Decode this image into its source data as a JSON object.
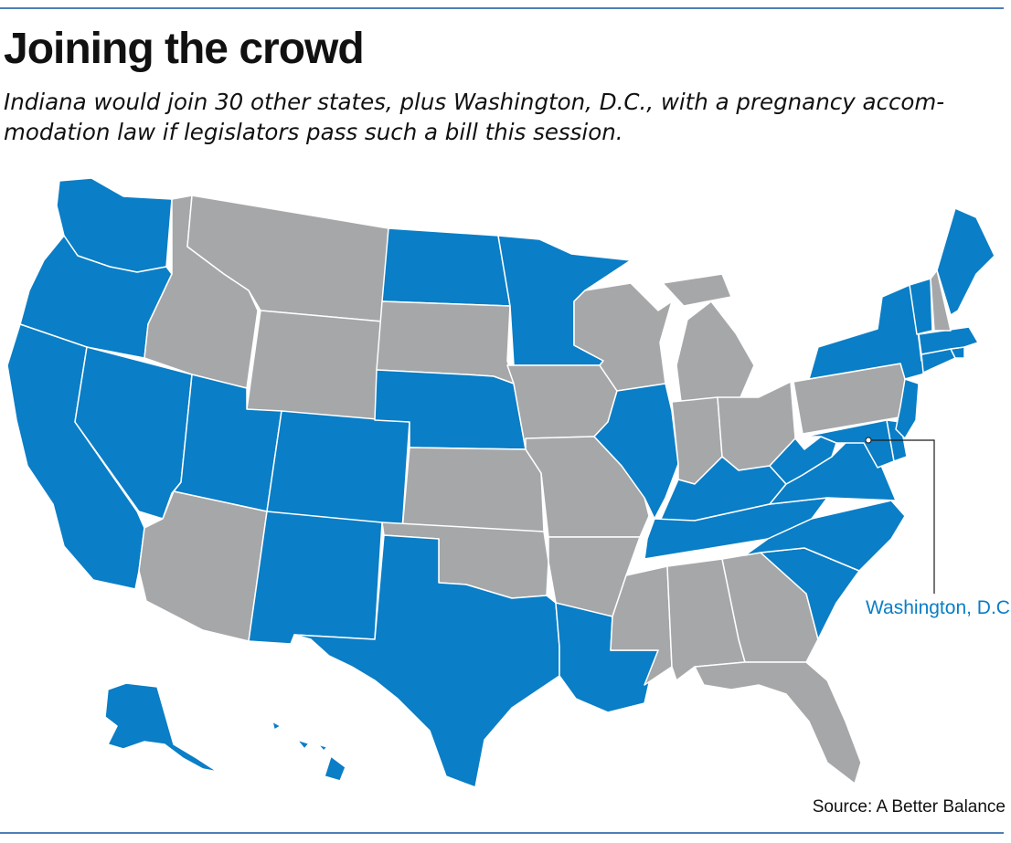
{
  "title": "Joining the crowd",
  "subtitle": "Indiana would join 30 other states, plus Washington, D.C., with a pregnancy accom-modation law if legislators pass such a bill this session.",
  "callout_label": "Washington, D.C.",
  "source": "Source: A Better Balance",
  "colors": {
    "has_law": "#0a7ec6",
    "no_law": "#a6a7a9",
    "rule": "#4d7fb8"
  },
  "legend_categories": [
    "has_law",
    "no_law"
  ],
  "states": [
    {
      "name": "Washington",
      "has_law": true
    },
    {
      "name": "Oregon",
      "has_law": true
    },
    {
      "name": "California",
      "has_law": true
    },
    {
      "name": "Nevada",
      "has_law": true
    },
    {
      "name": "Idaho",
      "has_law": false
    },
    {
      "name": "Montana",
      "has_law": false
    },
    {
      "name": "Wyoming",
      "has_law": false
    },
    {
      "name": "Utah",
      "has_law": true
    },
    {
      "name": "Arizona",
      "has_law": false
    },
    {
      "name": "Colorado",
      "has_law": true
    },
    {
      "name": "New Mexico",
      "has_law": true
    },
    {
      "name": "North Dakota",
      "has_law": true
    },
    {
      "name": "South Dakota",
      "has_law": false
    },
    {
      "name": "Nebraska",
      "has_law": true
    },
    {
      "name": "Kansas",
      "has_law": false
    },
    {
      "name": "Oklahoma",
      "has_law": false
    },
    {
      "name": "Texas",
      "has_law": true
    },
    {
      "name": "Minnesota",
      "has_law": true
    },
    {
      "name": "Iowa",
      "has_law": false
    },
    {
      "name": "Missouri",
      "has_law": false
    },
    {
      "name": "Arkansas",
      "has_law": false
    },
    {
      "name": "Louisiana",
      "has_law": true
    },
    {
      "name": "Wisconsin",
      "has_law": false
    },
    {
      "name": "Illinois",
      "has_law": true
    },
    {
      "name": "Michigan",
      "has_law": false
    },
    {
      "name": "Indiana",
      "has_law": false
    },
    {
      "name": "Ohio",
      "has_law": false
    },
    {
      "name": "Kentucky",
      "has_law": true
    },
    {
      "name": "Tennessee",
      "has_law": true
    },
    {
      "name": "Mississippi",
      "has_law": false
    },
    {
      "name": "Alabama",
      "has_law": false
    },
    {
      "name": "Georgia",
      "has_law": false
    },
    {
      "name": "Florida",
      "has_law": false
    },
    {
      "name": "South Carolina",
      "has_law": true
    },
    {
      "name": "North Carolina",
      "has_law": true
    },
    {
      "name": "Virginia",
      "has_law": true
    },
    {
      "name": "West Virginia",
      "has_law": true
    },
    {
      "name": "Pennsylvania",
      "has_law": false
    },
    {
      "name": "Maryland",
      "has_law": true
    },
    {
      "name": "Delaware",
      "has_law": true
    },
    {
      "name": "New Jersey",
      "has_law": true
    },
    {
      "name": "New York",
      "has_law": true
    },
    {
      "name": "Connecticut",
      "has_law": true
    },
    {
      "name": "Rhode Island",
      "has_law": true
    },
    {
      "name": "Massachusetts",
      "has_law": true
    },
    {
      "name": "Vermont",
      "has_law": true
    },
    {
      "name": "New Hampshire",
      "has_law": false
    },
    {
      "name": "Maine",
      "has_law": true
    },
    {
      "name": "Alaska",
      "has_law": true
    },
    {
      "name": "Hawaii",
      "has_law": true
    },
    {
      "name": "Washington, D.C.",
      "has_law": true
    }
  ]
}
